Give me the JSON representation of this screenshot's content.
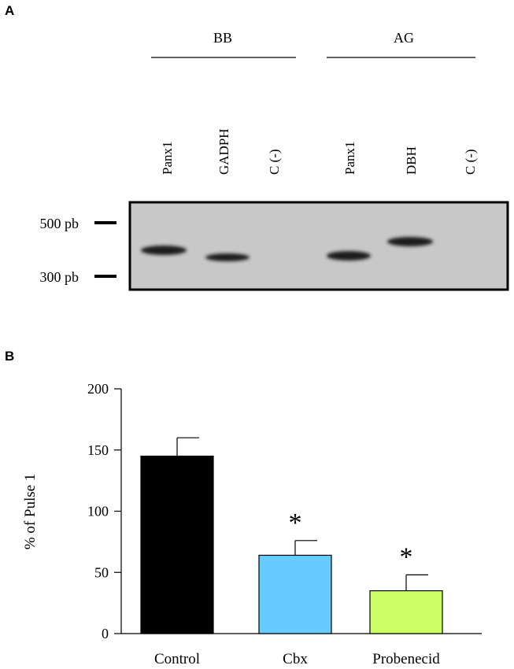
{
  "panel_a": {
    "letter": "A",
    "groups": [
      {
        "label": "BB",
        "lanes": [
          "Panx1",
          "GADPH",
          "C (-)"
        ]
      },
      {
        "label": "AG",
        "lanes": [
          "Panx1",
          "DBH",
          "C (-)"
        ]
      }
    ],
    "markers": [
      "500 pb",
      "300 pb"
    ],
    "gel_background": "#c8c8c8",
    "band_color": "#1a1a1a",
    "bands": [
      {
        "lane": "Panx1",
        "group": "BB",
        "size_relative": "below 500 pb"
      },
      {
        "lane": "GADPH",
        "group": "BB",
        "size_relative": "above 300 pb"
      },
      {
        "lane": "Panx1",
        "group": "AG",
        "size_relative": "above 300 pb"
      },
      {
        "lane": "DBH",
        "group": "AG",
        "size_relative": "below 500 pb"
      }
    ]
  },
  "panel_b": {
    "letter": "B"
  },
  "chart_data": {
    "type": "bar",
    "categories": [
      "Control",
      "Cbx",
      "Probenecid"
    ],
    "values": [
      145,
      64,
      35
    ],
    "errors": [
      15,
      12,
      13
    ],
    "colors": [
      "#000000",
      "#66ccff",
      "#ccff66"
    ],
    "significance": [
      "",
      "*",
      "*"
    ],
    "ylabel": "% of Pulse 1",
    "xlabel": "",
    "ylim": [
      0,
      200
    ],
    "yticks": [
      "0",
      "50",
      "100",
      "150",
      "200"
    ],
    "grid": false
  }
}
